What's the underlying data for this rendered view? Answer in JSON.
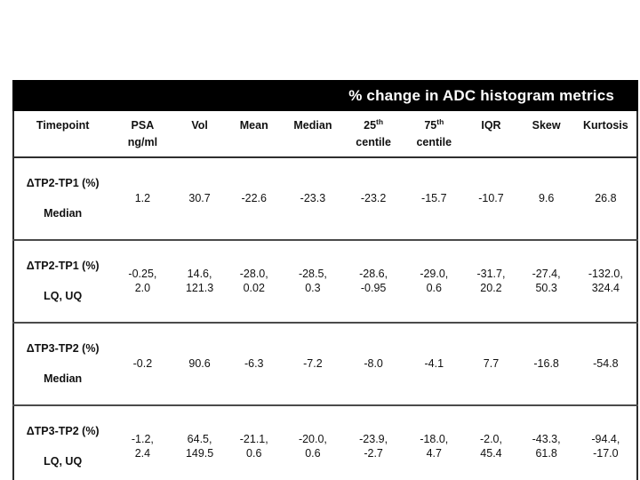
{
  "title": "% change in ADC histogram metrics",
  "table": {
    "columns": [
      {
        "line1": "Timepoint",
        "line2": ""
      },
      {
        "line1": "PSA",
        "line2": "ng/ml"
      },
      {
        "line1": "Vol",
        "line2": ""
      },
      {
        "line1": "Mean",
        "line2": ""
      },
      {
        "line1": "Median",
        "line2": ""
      },
      {
        "line1": "25",
        "sup": "th",
        "line2": "centile"
      },
      {
        "line1": "75",
        "sup": "th",
        "line2": "centile"
      },
      {
        "line1": "IQR",
        "line2": ""
      },
      {
        "line1": "Skew",
        "line2": ""
      },
      {
        "line1": "Kurtosis",
        "line2": ""
      }
    ],
    "rows": [
      {
        "label_line1": "ΔTP2-TP1 (%)",
        "label_line2": "Median",
        "values": [
          "1.2",
          "30.7",
          "-22.6",
          "-23.3",
          "-23.2",
          "-15.7",
          "-10.7",
          "9.6",
          "26.8"
        ]
      },
      {
        "label_line1": "ΔTP2-TP1 (%)",
        "label_line2": "LQ, UQ",
        "values": [
          "-0.25,\n2.0",
          "14.6,\n121.3",
          "-28.0,\n0.02",
          "-28.5,\n0.3",
          "-28.6,\n-0.95",
          "-29.0,\n0.6",
          "-31.7,\n20.2",
          "-27.4,\n50.3",
          "-132.0,\n324.4"
        ]
      },
      {
        "label_line1": "ΔTP3-TP2 (%)",
        "label_line2": "Median",
        "values": [
          "-0.2",
          "90.6",
          "-6.3",
          "-7.2",
          "-8.0",
          "-4.1",
          "7.7",
          "-16.8",
          "-54.8"
        ]
      },
      {
        "label_line1": "ΔTP3-TP2 (%)",
        "label_line2": "LQ, UQ",
        "values": [
          "-1.2,\n2.4",
          "64.5,\n149.5",
          "-21.1,\n0.6",
          "-20.0,\n0.6",
          "-23.9,\n-2.7",
          "-18.0,\n4.7",
          "-2.0,\n45.4",
          "-43.3,\n61.8",
          "-94.4,\n-17.0"
        ]
      }
    ]
  },
  "colors": {
    "title_bar_bg": "#000000",
    "title_text": "#ffffff",
    "body_text": "#111111",
    "border": "#2b2b2b"
  }
}
